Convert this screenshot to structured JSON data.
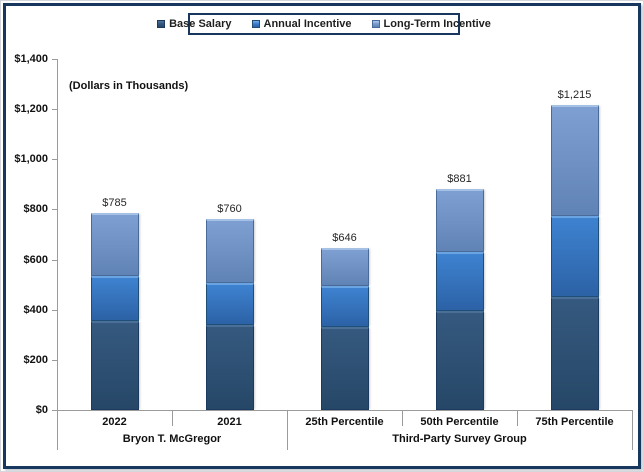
{
  "window": {
    "background": "#FFFFFF",
    "frame_border_color": "#17375E"
  },
  "chart_data": {
    "type": "bar",
    "stacked": true,
    "title": "",
    "annotation": "(Dollars in Thousands)",
    "legend_position": "top-center",
    "grid": false,
    "axis_color": "#9B9B9B",
    "text_color": "#111111",
    "categories": [
      "2022",
      "2021",
      "25th Percentile",
      "50th Percentile",
      "75th Percentile"
    ],
    "category_groups": [
      {
        "label": "Bryon T. McGregor",
        "start": 0,
        "end": 1
      },
      {
        "label": "Third-Party Survey Group",
        "start": 2,
        "end": 4
      }
    ],
    "series": [
      {
        "name": "Base Salary",
        "values": [
          355,
          340,
          330,
          395,
          450
        ],
        "colors": {
          "fill_top": "#35597F",
          "fill_bottom": "#264767",
          "edge": "#4A7099",
          "border": "#1C3A5E"
        }
      },
      {
        "name": "Annual Incentive",
        "values": [
          180,
          165,
          165,
          235,
          325
        ],
        "colors": {
          "fill_top": "#3E82D0",
          "fill_bottom": "#2C62A6",
          "edge": "#6AA5E3",
          "border": "#1F4E79"
        }
      },
      {
        "name": "Long-Term Incentive",
        "values": [
          250,
          255,
          151,
          251,
          440
        ],
        "colors": {
          "fill_top": "#7E9FD2",
          "fill_bottom": "#6083B5",
          "edge": "#A6C1E6",
          "border": "#4A6A99"
        }
      }
    ],
    "totals": [
      785,
      760,
      646,
      881,
      1215
    ],
    "total_labels": [
      "$785",
      "$760",
      "$646",
      "$881",
      "$1,215"
    ],
    "y_axis": {
      "min": 0,
      "max": 1400,
      "step": 200,
      "tick_labels": [
        "$0",
        "$200",
        "$400",
        "$600",
        "$800",
        "$1,000",
        "$1,200",
        "$1,400"
      ]
    }
  }
}
